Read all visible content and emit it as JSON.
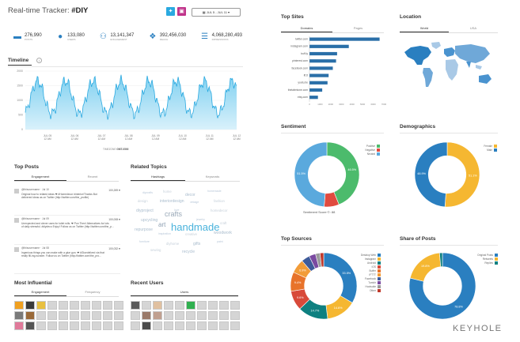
{
  "header": {
    "title": "Real-time Tracker: ",
    "hashtag": "#DIY",
    "date_range": "JUL 5 - JUL 11"
  },
  "metrics": [
    {
      "icon": "chat-bubble-icon",
      "value": "276,990",
      "label": "posts"
    },
    {
      "icon": "user-icon",
      "value": "133,080",
      "label": "users"
    },
    {
      "icon": "users-group-icon",
      "value": "13,141,347",
      "label": "engagement"
    },
    {
      "icon": "network-icon",
      "value": "392,456,030",
      "label": "reach"
    },
    {
      "icon": "impressions-icon",
      "value": "4,068,280,493",
      "label": "impressions"
    }
  ],
  "timeline": {
    "title": "Timeline",
    "y_ticks": [
      "2000",
      "1500",
      "1000",
      "500",
      "0"
    ],
    "x_ticks": [
      "JUL 05\n12 AM",
      "JUL 06\n12 AM",
      "JUL 07\n12 AM",
      "JUL 08\n12 AM",
      "JUL 09\n12 AM",
      "JUL 10\n12 AM",
      "JUL 11\n12 AM",
      "JUL 12\n12 AM"
    ],
    "footer_left": "TIMEZONE",
    "footer_right": "GMT-0500"
  },
  "top_sites": {
    "title": "Top Sites",
    "tabs": [
      "Domains",
      "Pages"
    ],
    "sites": [
      "twitter.com",
      "instagram.com",
      "buff.ly",
      "pinterest.com",
      "facebook.com",
      "ift.tt",
      "youtu.be",
      "thetalentone.com",
      "etsy.com"
    ],
    "values": [
      6600,
      3700,
      2600,
      2500,
      2200,
      1800,
      1700,
      1200,
      800
    ],
    "x_ticks": [
      "0",
      "1000",
      "2000",
      "3000",
      "4000",
      "5000",
      "6000",
      "7000"
    ],
    "xlim": [
      0,
      7000
    ]
  },
  "location": {
    "title": "Location",
    "tabs": [
      "World",
      "USA"
    ]
  },
  "sentiment": {
    "title": "Sentiment",
    "legend": [
      "Positive",
      "Negative",
      "Neutral"
    ],
    "colors": [
      "#4cbb6c",
      "#e04b3f",
      "#5aa9dd"
    ],
    "values": [
      46.5,
      7.9,
      51.5
    ],
    "labels": [
      "46.5%",
      "",
      "51.5%"
    ],
    "score_label": "Sentiment Score ©: 88"
  },
  "demographics": {
    "title": "Demographics",
    "legend": [
      "Female",
      "Male"
    ],
    "colors": [
      "#f5b731",
      "#2a7fc0"
    ],
    "values": [
      51.1,
      48.9
    ],
    "labels": [
      "51.1%",
      "48.9%"
    ]
  },
  "top_posts": {
    "title": "Top Posts",
    "tabs": [
      "Engagement",
      "Recent"
    ],
    "posts": [
      {
        "user": "@thisusername · Jul 10",
        "text": "Original how to related ideas ❤ #Homedecor #interior/Thanks But\ndelivered ideas as on Twitter (http://twitter.com/the_profile)",
        "count": "100,269 ♥"
      },
      {
        "user": "@thisusername · Jul 09",
        "text": "Unexpected and clever uses for toilet rolls. ❤ Pun Then! Alternatives for lots\nof daily stressful. #diydeco Enjoy! Follow us on Twitter (http://twitter.com/the_p...",
        "count": "100,008 ♥"
      },
      {
        "user": "@thisusername · Jul 08",
        "text": "Ingenious things you can make with a glue gun. ❤ #Gluedelived via that\nreally fill-ing-wonder. Follow us on Twitter (http://twitter.com/the_pro...",
        "count": "100,032 ♥"
      }
    ]
  },
  "related_topics": {
    "title": "Related Topics",
    "tabs": [
      "Hashtags",
      "Keywords"
    ],
    "main_words": [
      "crafts",
      "art",
      "handmade"
    ],
    "minor_words": [
      "diycrafts",
      "home",
      "decor",
      "homemade",
      "design",
      "interiordesign",
      "vintage",
      "fashion",
      "diyproject",
      "love",
      "homedecor",
      "upcycling",
      "jewelry",
      "craft",
      "repurpose",
      "inspiration",
      "creative",
      "woodwork",
      "furniture",
      "diyhome",
      "gifts",
      "paint",
      "sewing",
      "recycle"
    ]
  },
  "top_sources": {
    "title": "Top Sources",
    "legend": [
      "Desktop Web",
      "Instagram",
      "Android",
      "iOS",
      "Buffer",
      "IFTTT",
      "Facebook",
      "Tumblr",
      "Hootsuite",
      "Other"
    ],
    "colors": [
      "#2a7fc0",
      "#f5b731",
      "#0e8080",
      "#d84a3a",
      "#e8732a",
      "#f29c38",
      "#3e5b9a",
      "#7a4aa0",
      "#9a9a9a",
      "#c0392b"
    ],
    "values": [
      33.5,
      14.6,
      14.7,
      9.6,
      9.4,
      6.9,
      4.1,
      3.2,
      2.2,
      1.8
    ],
    "labels": [
      "33.5%",
      "14.6%",
      "14.7%",
      "9.6%",
      "9.4%",
      "6.9%",
      "",
      "",
      "",
      ""
    ]
  },
  "share_of_posts": {
    "title": "Share of Posts",
    "legend": [
      "Original Posts",
      "Retweets",
      "Replies"
    ],
    "colors": [
      "#2a7fc0",
      "#f5b731",
      "#0e8080"
    ],
    "values": [
      78.8,
      19.8,
      1.4
    ],
    "labels": [
      "78.8%",
      "19.8%",
      ""
    ]
  },
  "most_influential": {
    "title": "Most Influential",
    "tabs": [
      "Engagement",
      "Frequency"
    ]
  },
  "recent_users": {
    "title": "Recent Users",
    "tabs": [
      "Users"
    ]
  },
  "brand": "KEYHOLE"
}
